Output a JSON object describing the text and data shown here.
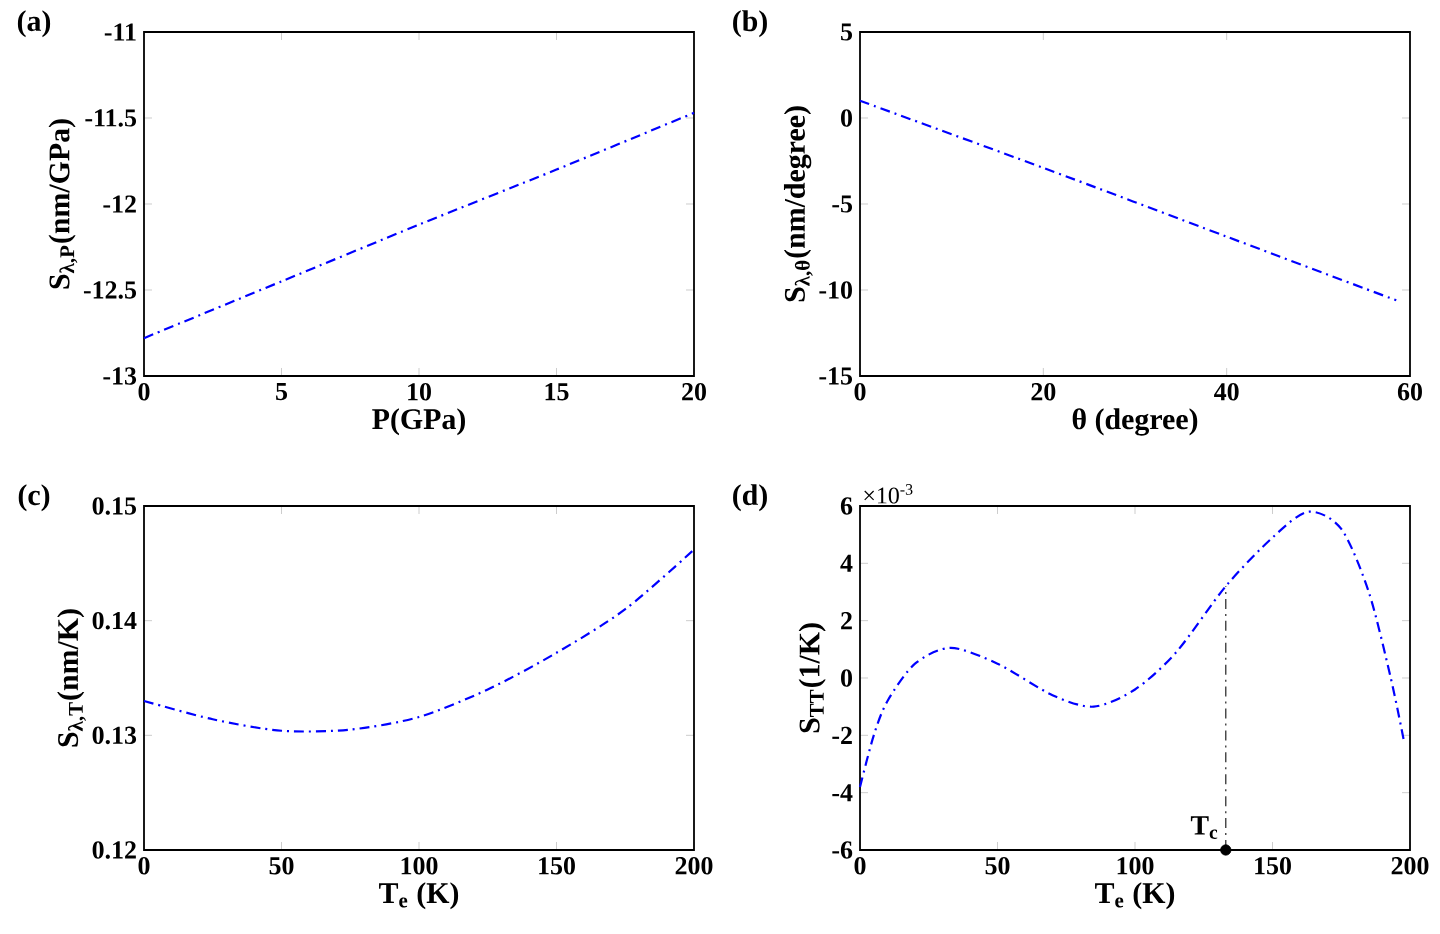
{
  "chart_data": [
    {
      "type": "line",
      "title": "(a)",
      "xlabel": "P(GPa)",
      "ylabel": "S$_{λ,P}$(nm/GPa)",
      "line_style": "dashdot",
      "x": [
        0,
        5,
        10,
        15,
        20
      ],
      "series": [
        {
          "color": "#0000ff",
          "values": [
            -12.78,
            -12.45,
            -12.12,
            -11.8,
            -11.47
          ]
        }
      ],
      "xlim": [
        0,
        20
      ],
      "xticks": [
        0,
        5,
        10,
        15,
        20
      ],
      "ylim": [
        -13,
        -11
      ],
      "yticks": [
        -13,
        -12.5,
        -12,
        -11.5,
        -11
      ]
    },
    {
      "type": "line",
      "title": "(b)",
      "xlabel": "θ (degree)",
      "ylabel": "S$_{λ,θ}$(nm/degree)",
      "line_style": "dashdot",
      "x": [
        0,
        20,
        40,
        58.5
      ],
      "series": [
        {
          "color": "#0000ff",
          "values": [
            1.0,
            -2.9,
            -6.9,
            -10.6
          ]
        }
      ],
      "xlim": [
        0,
        60
      ],
      "xticks": [
        0,
        20,
        40,
        60
      ],
      "ylim": [
        -15,
        5
      ],
      "yticks": [
        -15,
        -10,
        -5,
        0,
        5
      ]
    },
    {
      "type": "line",
      "title": "(c)",
      "xlabel": "T$_{e}$ (K)",
      "ylabel": "S$_{λ,T}$(nm/K)",
      "line_style": "dashdot",
      "x": [
        0,
        25,
        50,
        75,
        100,
        125,
        150,
        175,
        200
      ],
      "series": [
        {
          "color": "#0000ff",
          "values": [
            0.133,
            0.1314,
            0.1304,
            0.1305,
            0.1316,
            0.134,
            0.1372,
            0.141,
            0.1462
          ]
        }
      ],
      "xlim": [
        0,
        200
      ],
      "xticks": [
        0,
        50,
        100,
        150,
        200
      ],
      "ylim": [
        0.12,
        0.15
      ],
      "yticks": [
        0.12,
        0.13,
        0.14,
        0.15
      ]
    },
    {
      "type": "line",
      "title": "(d)",
      "xlabel": "T$_{e}$ (K)",
      "ylabel": "S$_{TT}$(1/K)",
      "line_style": "dashdot",
      "x": [
        0,
        5,
        10,
        20,
        33,
        50,
        70,
        85,
        100,
        115,
        133,
        150,
        163,
        175,
        185,
        193,
        198
      ],
      "series": [
        {
          "color": "#0000ff",
          "values": [
            -3.8,
            -2.0,
            -0.8,
            0.5,
            1.05,
            0.5,
            -0.6,
            -1.0,
            -0.4,
            0.9,
            3.2,
            4.9,
            5.8,
            5.2,
            3.0,
            0.0,
            -2.3
          ]
        },
        {
          "type": "scatter",
          "marker": "circle",
          "color": "#000000",
          "x": [
            133
          ],
          "values": [
            -6
          ]
        }
      ],
      "xlim": [
        0,
        200
      ],
      "xticks": [
        0,
        50,
        100,
        150,
        200
      ],
      "ylim": [
        -6,
        6
      ],
      "yticks": [
        -6,
        -4,
        -2,
        0,
        2,
        4,
        6
      ],
      "ref_lines": [
        {
          "axis": "x",
          "value": 133,
          "label": "T$_{c}$",
          "color": "#404040",
          "line_style": "dashdot"
        }
      ],
      "annotations": [
        "×10$^{-3}$"
      ]
    }
  ]
}
